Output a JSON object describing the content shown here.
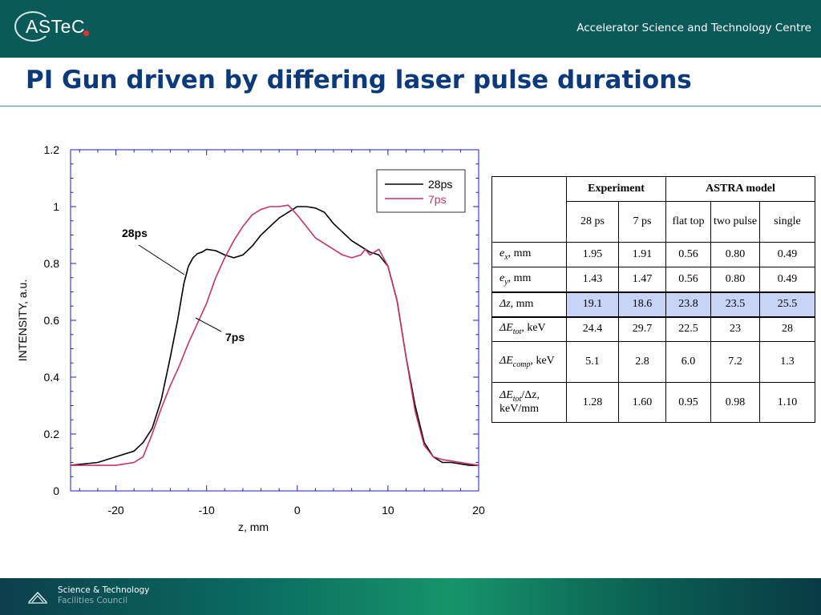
{
  "header": {
    "logo_text": "ASTeC",
    "org_name": "Accelerator Science and Technology Centre"
  },
  "title": "PI Gun driven by differing laser pulse durations",
  "footer": {
    "line1": "Science & Technology",
    "line2": "Facilities Council"
  },
  "colors": {
    "header_bg": "#0b5a5a",
    "title": "#0b3a7c",
    "series_28ps": "#000000",
    "series_7ps": "#c8316d",
    "highlight_row": "#c7d4f8"
  },
  "chart_data": {
    "type": "line",
    "xlabel": "z, mm",
    "ylabel": "INTENSITY, a.u.",
    "xlim": [
      -25,
      20
    ],
    "ylim": [
      0,
      1.2
    ],
    "x_ticks": [
      "-20",
      "-10",
      "0",
      "10",
      "20"
    ],
    "y_ticks": [
      "0",
      "0.2",
      "0.4",
      "0.6",
      "0.8",
      "1",
      "1.2"
    ],
    "grid": false,
    "legend_position": "top-right",
    "annotations": [
      "28ps",
      "7ps"
    ],
    "series": [
      {
        "name": "28ps",
        "color": "#000000",
        "points": [
          [
            -25,
            0.09
          ],
          [
            -22,
            0.1
          ],
          [
            -20,
            0.12
          ],
          [
            -18,
            0.14
          ],
          [
            -17,
            0.17
          ],
          [
            -16,
            0.22
          ],
          [
            -15,
            0.32
          ],
          [
            -14,
            0.47
          ],
          [
            -13.2,
            0.6
          ],
          [
            -12.5,
            0.73
          ],
          [
            -12,
            0.79
          ],
          [
            -11.5,
            0.82
          ],
          [
            -11,
            0.835
          ],
          [
            -10.5,
            0.84
          ],
          [
            -10,
            0.85
          ],
          [
            -9,
            0.845
          ],
          [
            -8,
            0.83
          ],
          [
            -7,
            0.82
          ],
          [
            -6,
            0.83
          ],
          [
            -5,
            0.86
          ],
          [
            -4,
            0.9
          ],
          [
            -3,
            0.93
          ],
          [
            -2,
            0.96
          ],
          [
            -1,
            0.98
          ],
          [
            0,
            1.0
          ],
          [
            1,
            1.0
          ],
          [
            2,
            0.995
          ],
          [
            3,
            0.98
          ],
          [
            4,
            0.94
          ],
          [
            5,
            0.91
          ],
          [
            6,
            0.88
          ],
          [
            7,
            0.86
          ],
          [
            8,
            0.84
          ],
          [
            9,
            0.83
          ],
          [
            10,
            0.79
          ],
          [
            11,
            0.67
          ],
          [
            12,
            0.47
          ],
          [
            13,
            0.3
          ],
          [
            14,
            0.17
          ],
          [
            15,
            0.12
          ],
          [
            16,
            0.1
          ],
          [
            17,
            0.1
          ],
          [
            18,
            0.095
          ],
          [
            19,
            0.09
          ],
          [
            20,
            0.09
          ]
        ]
      },
      {
        "name": "7ps",
        "color": "#c8316d",
        "points": [
          [
            -25,
            0.09
          ],
          [
            -20,
            0.09
          ],
          [
            -18,
            0.1
          ],
          [
            -17,
            0.12
          ],
          [
            -16,
            0.2
          ],
          [
            -15,
            0.29
          ],
          [
            -14,
            0.37
          ],
          [
            -13,
            0.44
          ],
          [
            -12,
            0.52
          ],
          [
            -11,
            0.59
          ],
          [
            -10,
            0.66
          ],
          [
            -9,
            0.75
          ],
          [
            -8,
            0.82
          ],
          [
            -7,
            0.88
          ],
          [
            -6,
            0.93
          ],
          [
            -5,
            0.97
          ],
          [
            -4,
            0.99
          ],
          [
            -3,
            1.0
          ],
          [
            -2,
            1.0
          ],
          [
            -1,
            1.005
          ],
          [
            0,
            0.97
          ],
          [
            1,
            0.93
          ],
          [
            2,
            0.89
          ],
          [
            3,
            0.87
          ],
          [
            4,
            0.85
          ],
          [
            5,
            0.83
          ],
          [
            6,
            0.82
          ],
          [
            7,
            0.83
          ],
          [
            7.5,
            0.85
          ],
          [
            8,
            0.83
          ],
          [
            9,
            0.85
          ],
          [
            10,
            0.79
          ],
          [
            11,
            0.67
          ],
          [
            12,
            0.47
          ],
          [
            13,
            0.28
          ],
          [
            14,
            0.16
          ],
          [
            15,
            0.12
          ],
          [
            16,
            0.11
          ],
          [
            17,
            0.105
          ],
          [
            18,
            0.1
          ],
          [
            19,
            0.095
          ],
          [
            20,
            0.09
          ]
        ]
      }
    ]
  },
  "table": {
    "headers": {
      "experiment": "Experiment",
      "astra": "ASTRA model"
    },
    "subheaders": [
      "28 ps",
      "7 ps",
      "flat top",
      "two pulse",
      "single"
    ],
    "rows": [
      {
        "sym": "e",
        "sub": "x",
        "unit": ", mm",
        "values": [
          "1.95",
          "1.91",
          "0.56",
          "0.80",
          "0.49"
        ]
      },
      {
        "sym": "e",
        "sub": "y",
        "unit": ", mm",
        "values": [
          "1.43",
          "1.47",
          "0.56",
          "0.80",
          "0.49"
        ]
      },
      {
        "sym": "Δz",
        "sub": "",
        "unit": ", mm",
        "values": [
          "19.1",
          "18.6",
          "23.8",
          "23.5",
          "25.5"
        ]
      },
      {
        "sym": "ΔE",
        "sub": "tot",
        "unit": ", keV",
        "values": [
          "24.4",
          "29.7",
          "22.5",
          "23",
          "28"
        ]
      },
      {
        "sym": "ΔE",
        "sub": "comp",
        "unit": ", keV",
        "values": [
          "5.1",
          "2.8",
          "6.0",
          "7.2",
          "1.3"
        ]
      },
      {
        "sym": "ΔE",
        "sub": "tot",
        "unit": "/Δz, keV/mm",
        "values": [
          "1.28",
          "1.60",
          "0.95",
          "0.98",
          "1.10"
        ]
      }
    ]
  }
}
